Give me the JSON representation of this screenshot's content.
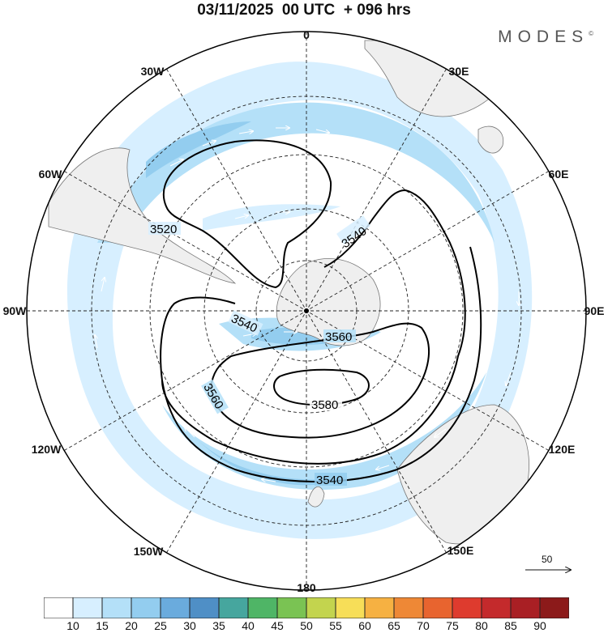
{
  "title": "03/11/2025  00 UTC  + 096 hrs",
  "brand": "MODES",
  "brand_mark": "©",
  "map": {
    "projection": "south-polar-stereographic",
    "longitude_labels": [
      {
        "key": "lon-0",
        "text": "0"
      },
      {
        "key": "lon-30e",
        "text": "30E"
      },
      {
        "key": "lon-60e",
        "text": "60E"
      },
      {
        "key": "lon-90e",
        "text": "90E"
      },
      {
        "key": "lon-120e",
        "text": "120E"
      },
      {
        "key": "lon-150e",
        "text": "150E"
      },
      {
        "key": "lon-180",
        "text": "180"
      },
      {
        "key": "lon-150w",
        "text": "150W"
      },
      {
        "key": "lon-120w",
        "text": "120W"
      },
      {
        "key": "lon-90w",
        "text": "90W"
      },
      {
        "key": "lon-60w",
        "text": "60W"
      },
      {
        "key": "lon-30w",
        "text": "30W"
      }
    ],
    "contour_labels": [
      "3520",
      "3540",
      "3540",
      "3560",
      "3560",
      "3580",
      "3540"
    ],
    "contour_levels": [
      3520,
      3540,
      3560,
      3580
    ],
    "wind_reference_vector": "50",
    "colors": {
      "land": "#efefef",
      "coast": "#777777",
      "graticule": "#222222",
      "contour": "#000000"
    }
  },
  "colorbar": {
    "ticks": [
      "10",
      "15",
      "20",
      "25",
      "30",
      "35",
      "40",
      "45",
      "50",
      "55",
      "60",
      "65",
      "70",
      "75",
      "80",
      "85",
      "90"
    ],
    "colors": [
      "#ffffff",
      "#d7efff",
      "#b4e0f8",
      "#93cdef",
      "#6aabdd",
      "#4f8fc6",
      "#46a69e",
      "#4fb566",
      "#7ac353",
      "#c3d44e",
      "#f7de58",
      "#f6b142",
      "#ee8836",
      "#e8642f",
      "#de3b2e",
      "#c42a2c",
      "#a91f24",
      "#8c1a1a"
    ]
  }
}
